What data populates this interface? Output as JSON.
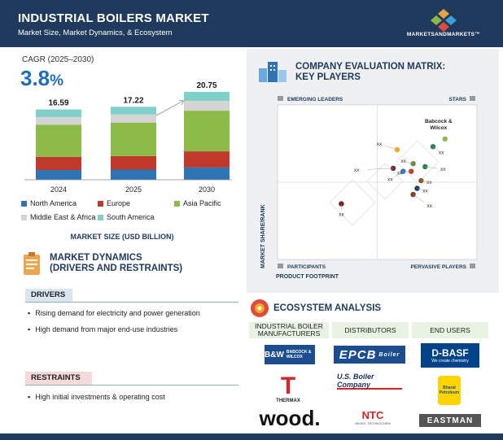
{
  "header": {
    "title": "INDUSTRIAL BOILERS MARKET",
    "subtitle": "Market Size, Market Dynamics, & Ecosystem",
    "brand": "MARKETSANDMARKETS™"
  },
  "cagr": {
    "label": "CAGR (2025–2030)",
    "value": "3.8",
    "unit": "%"
  },
  "chart_data": {
    "type": "bar",
    "stacked": true,
    "categories": [
      "2024",
      "2025",
      "2030"
    ],
    "totals": [
      "16.59",
      "17.22",
      "20.75"
    ],
    "series": [
      {
        "name": "North America",
        "color": "#2e75b6",
        "values": [
          2.3,
          2.4,
          2.9
        ]
      },
      {
        "name": "Europe",
        "color": "#c0392b",
        "values": [
          3.1,
          3.2,
          3.8
        ]
      },
      {
        "name": "Asia Pacific",
        "color": "#8dbb4a",
        "values": [
          7.6,
          7.9,
          9.6
        ]
      },
      {
        "name": "Middle East & Africa",
        "color": "#d4d4d4",
        "values": [
          1.8,
          1.9,
          2.3
        ]
      },
      {
        "name": "South America",
        "color": "#7fd0c8",
        "values": [
          1.79,
          1.82,
          2.15
        ]
      }
    ],
    "ylim": [
      0,
      24
    ],
    "xlabel": "MARKET SIZE (USD BILLION)"
  },
  "market_dynamics": {
    "title_line1": "MARKET DYNAMICS",
    "title_line2": "(DRIVERS AND RESTRAINTS)",
    "drivers_label": "DRIVERS",
    "drivers": [
      "Rising demand for electricity and power generation",
      "High demand from major end-use industries"
    ],
    "restraints_label": "RESTRAINTS",
    "restraints": [
      "High initial investments & operating cost"
    ]
  },
  "matrix": {
    "title_line1": "COMPANY EVALUATION MATRIX:",
    "title_line2": "KEY PLAYERS",
    "quadrants": {
      "top_left": "EMERGING LEADERS",
      "top_right": "STARS",
      "bottom_left": "PARTICIPANTS",
      "bottom_right": "PERVASIVE PLAYERS"
    },
    "y_axis": "MARKET SHARE/RANK",
    "x_axis": "PRODUCT FOOTPRINT",
    "labelled_player": [
      "Babcock &",
      "Wilcox"
    ],
    "point_label": "xx",
    "points": [
      {
        "x": 0.84,
        "y": 0.78,
        "color": "#8dbb4a"
      },
      {
        "x": 0.78,
        "y": 0.73,
        "color": "#2e7d4f"
      },
      {
        "x": 0.6,
        "y": 0.71,
        "color": "#f5a623"
      },
      {
        "x": 0.68,
        "y": 0.62,
        "color": "#6d8c3a"
      },
      {
        "x": 0.58,
        "y": 0.59,
        "color": "#6b2a3a"
      },
      {
        "x": 0.74,
        "y": 0.6,
        "color": "#2e7d4f"
      },
      {
        "x": 0.63,
        "y": 0.57,
        "color": "#2e75b6"
      },
      {
        "x": 0.67,
        "y": 0.57,
        "color": "#c0392b"
      },
      {
        "x": 0.72,
        "y": 0.51,
        "color": "#8a5a2b"
      },
      {
        "x": 0.7,
        "y": 0.46,
        "color": "#1f3a5c"
      },
      {
        "x": 0.68,
        "y": 0.42,
        "color": "#7a3f1d"
      },
      {
        "x": 0.32,
        "y": 0.36,
        "color": "#7a1d1d"
      }
    ]
  },
  "ecosystem": {
    "title": "ECOSYSTEM ANALYSIS",
    "col1": "INDUSTRIAL BOILER MANUFACTURERS",
    "col2": "DISTRIBUTORS",
    "col3": "END USERS",
    "logos": {
      "bw": "B&W",
      "bw_small": "BABCOCK & WILCOX",
      "epcb": "EPCB",
      "epcb_small": "Boiler",
      "basf": "D-BASF",
      "basf_tag": "We create chemistry",
      "thermax_mark": "T",
      "thermax": "THERMAX",
      "usb": "U.S. Boiler Company",
      "bpcl": "Bharat Petroleum",
      "wood": "wood.",
      "ntc": "NTC",
      "ntc_small": "NIKKEL TECHNOCHEM",
      "eastman": "EASTMAN"
    }
  }
}
